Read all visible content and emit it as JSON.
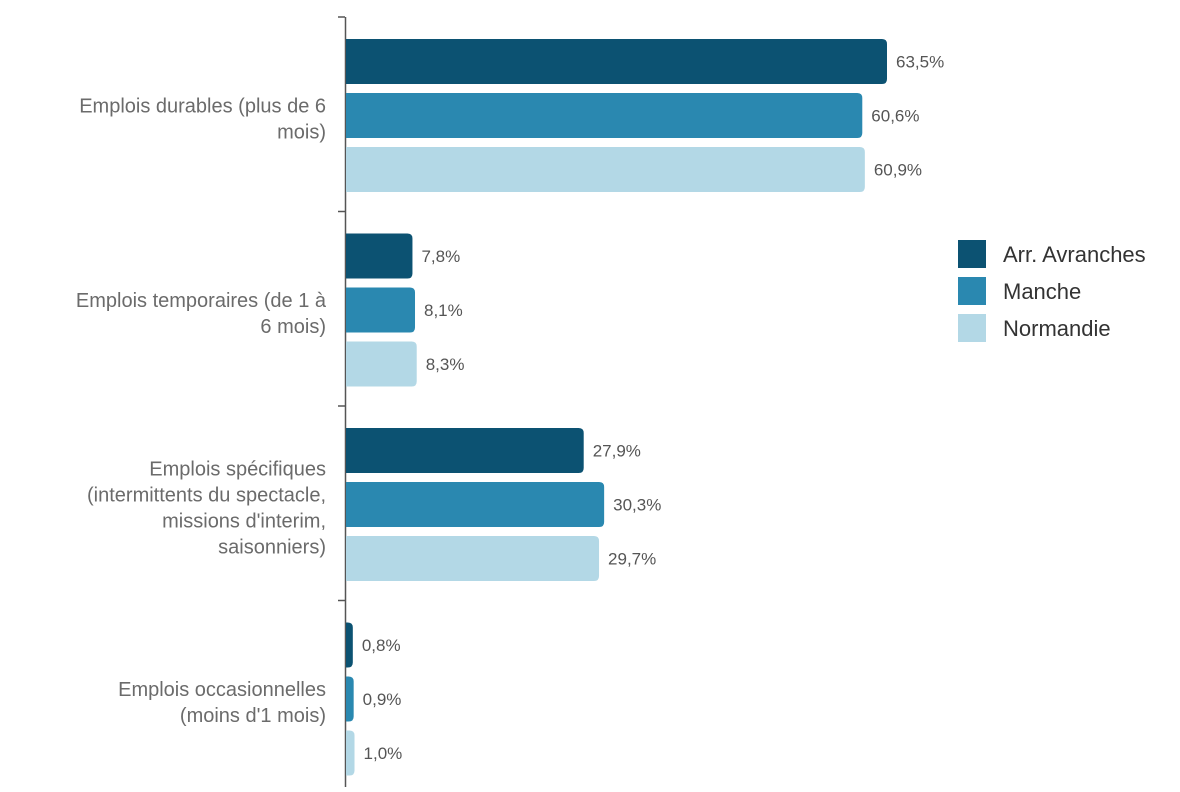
{
  "chart_data": {
    "type": "bar",
    "orientation": "horizontal",
    "categories": [
      [
        "Emplois durables (plus de 6",
        "mois)"
      ],
      [
        "Emplois temporaires (de 1 à",
        "6 mois)"
      ],
      [
        "Emplois spécifiques",
        "(intermittents du spectacle,",
        "missions d'interim,",
        "saisonniers)"
      ],
      [
        "Emplois occasionnelles",
        "(moins d'1 mois)"
      ]
    ],
    "series": [
      {
        "name": "Arr. Avranches",
        "color": "#0c5272",
        "values": [
          63.5,
          7.8,
          27.9,
          0.8
        ],
        "labels": [
          "63,5%",
          "7,8%",
          "27,9%",
          "0,8%"
        ]
      },
      {
        "name": "Manche",
        "color": "#2a88b0",
        "values": [
          60.6,
          8.1,
          30.3,
          0.9
        ],
        "labels": [
          "60,6%",
          "8,1%",
          "30,3%",
          "0,9%"
        ]
      },
      {
        "name": "Normandie",
        "color": "#b3d8e6",
        "values": [
          60.9,
          8.3,
          29.7,
          1.0
        ],
        "labels": [
          "60,9%",
          "8,3%",
          "29,7%",
          "1,0%"
        ]
      }
    ],
    "xlim": [
      0,
      63.5
    ],
    "grid": false,
    "legend_position": "right"
  }
}
